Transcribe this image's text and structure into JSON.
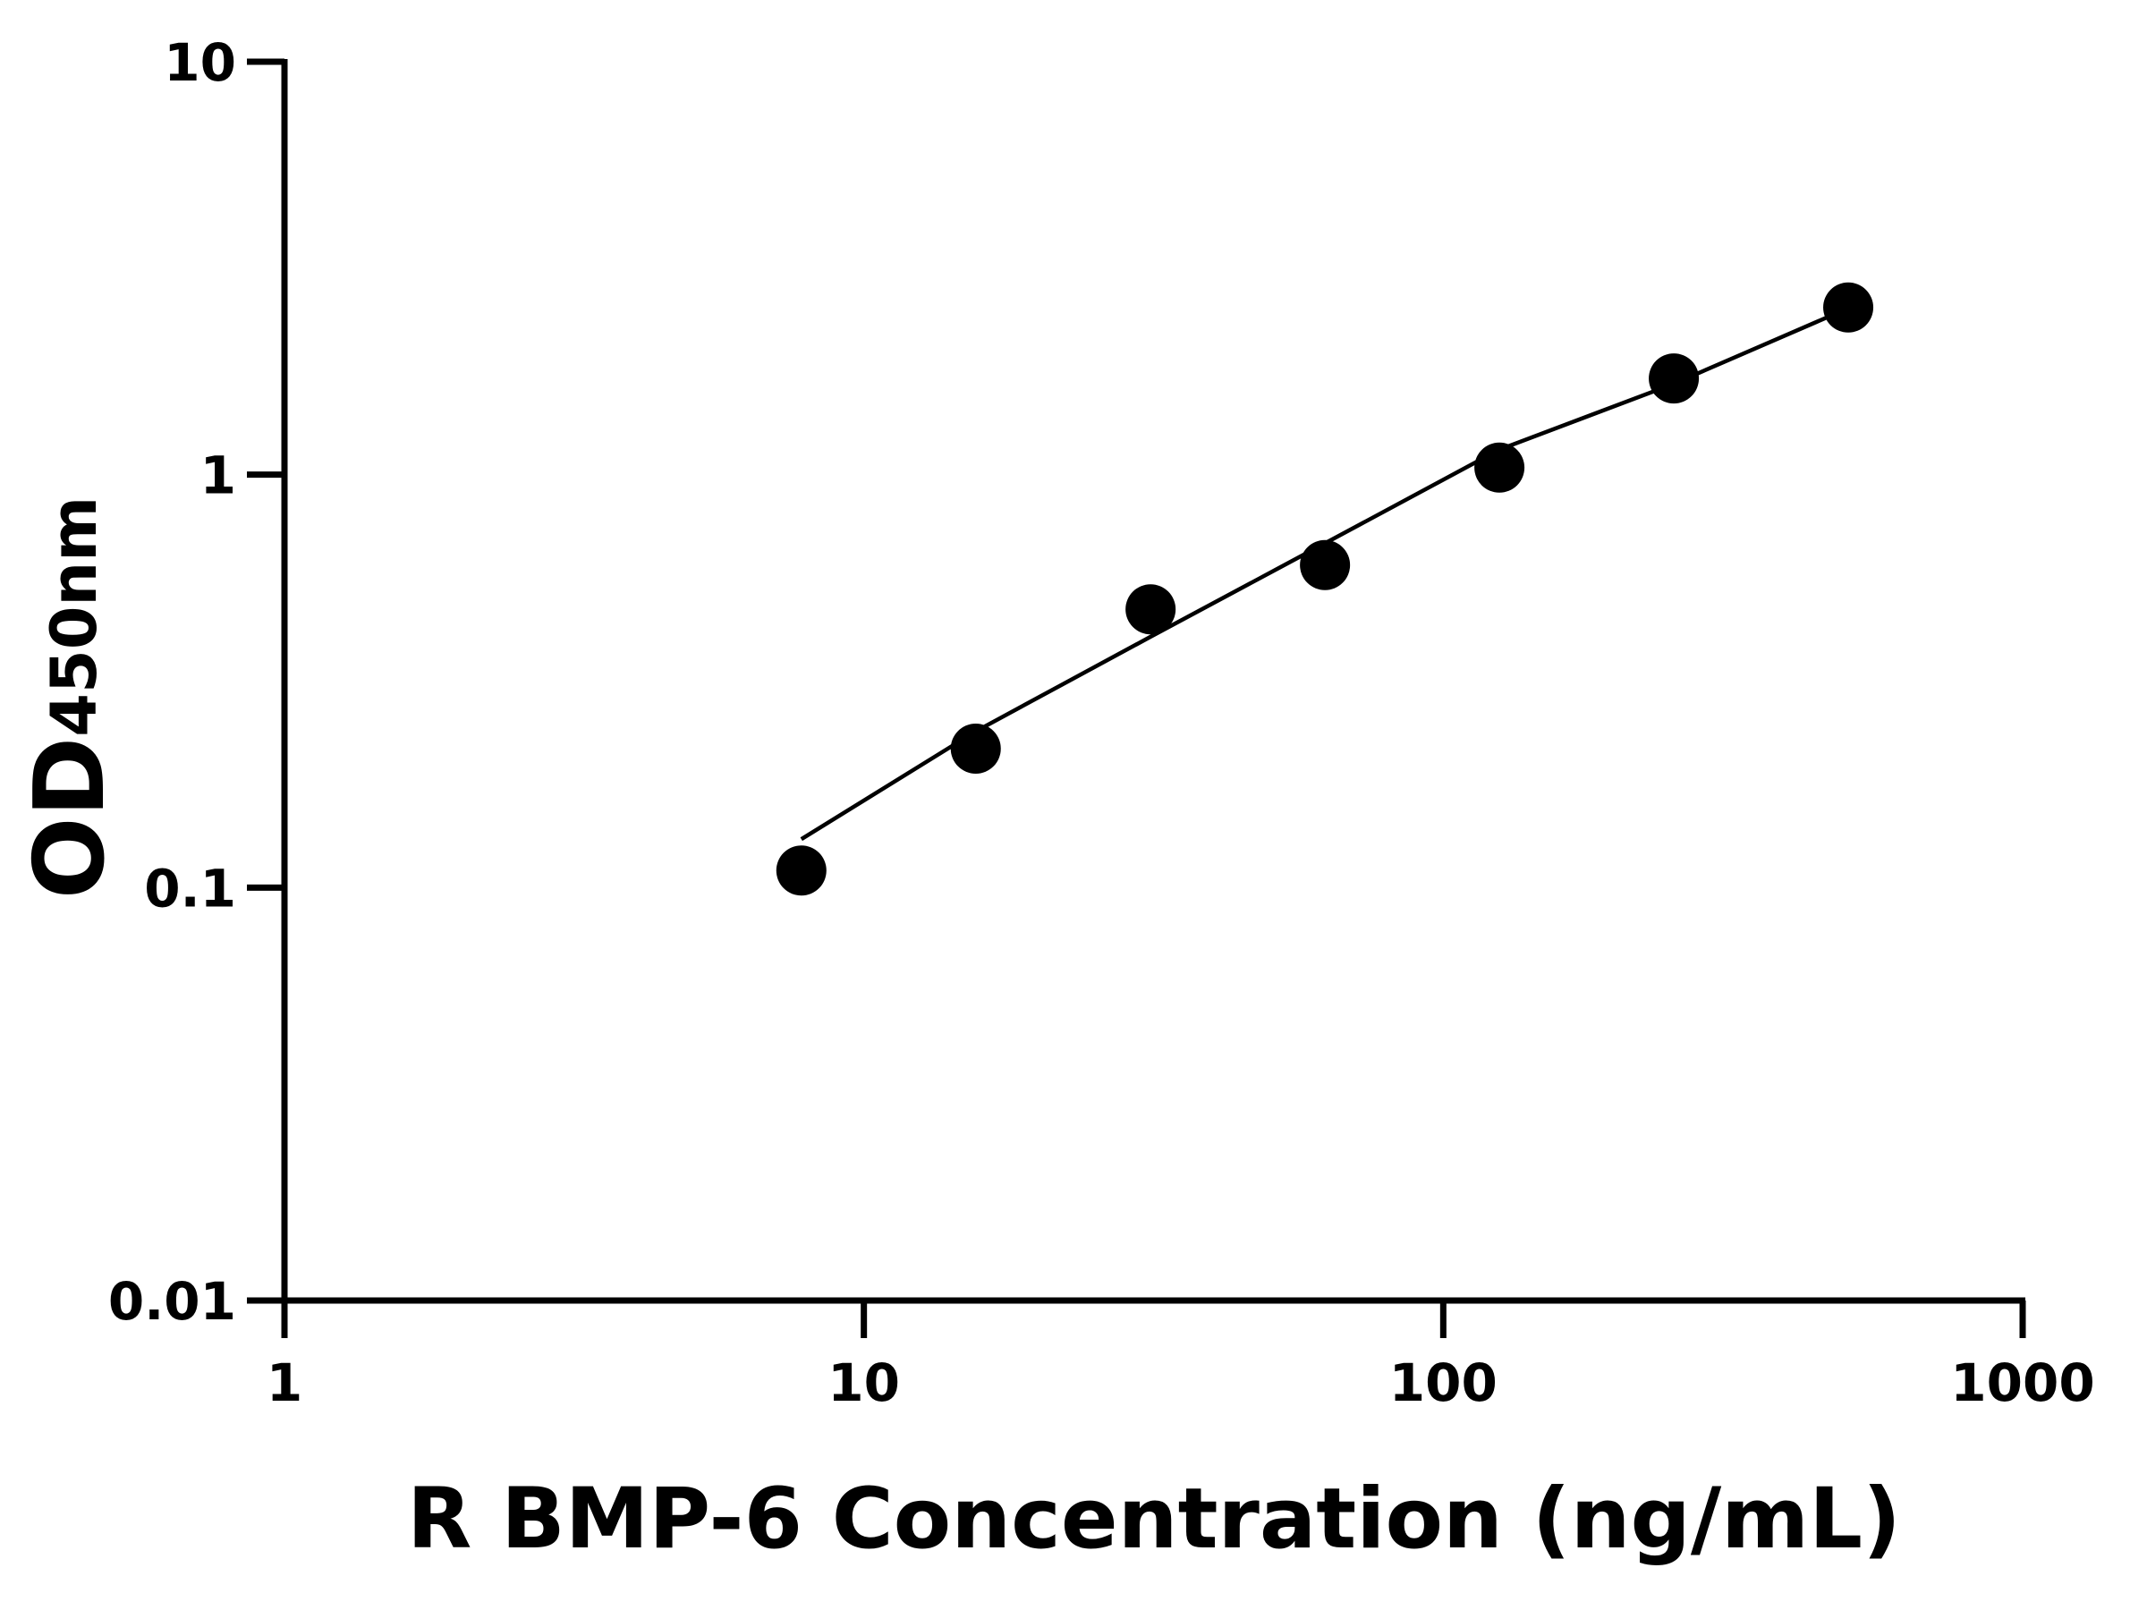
{
  "chart_data": {
    "type": "scatter",
    "x_label": "R BMP-6 Concentration (ng/mL)",
    "y_label": "OD",
    "y_label_subscript": "450nm",
    "xscale": "log",
    "yscale": "log",
    "xlim": [
      1,
      1000
    ],
    "xticks": [
      1,
      10,
      100,
      1000
    ],
    "ylim": [
      0.01,
      10
    ],
    "yticks": [
      0.01,
      0.1,
      1,
      10
    ],
    "series": [
      {
        "mode": "markers",
        "color": "#000000",
        "x": [
          7.8,
          15.6,
          31.25,
          62.5,
          125,
          250,
          500
        ],
        "values": [
          0.11,
          0.217,
          0.472,
          0.604,
          1.04,
          1.71,
          2.54
        ]
      },
      {
        "mode": "line",
        "color": "#000000",
        "x": [
          7.8,
          15.6,
          31.25,
          62.5,
          125,
          250,
          500
        ],
        "values": [
          0.131,
          0.239,
          0.405,
          0.682,
          1.15,
          1.66,
          2.53
        ]
      }
    ]
  }
}
